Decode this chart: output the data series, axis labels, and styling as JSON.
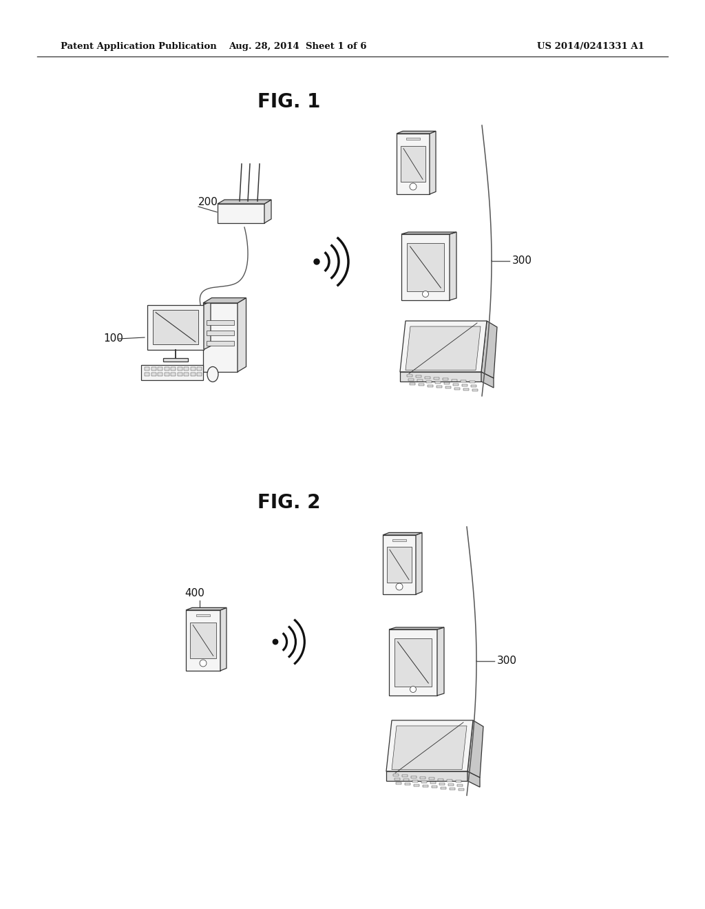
{
  "bg_color": "#ffffff",
  "header_left": "Patent Application Publication",
  "header_mid": "Aug. 28, 2014  Sheet 1 of 6",
  "header_right": "US 2014/0241331 A1",
  "fig1_title": "FIG. 1",
  "fig2_title": "FIG. 2",
  "line_color": "#333333",
  "text_color": "#111111",
  "fill_light": "#f5f5f5",
  "fill_mid": "#e0e0e0",
  "fill_dark": "#c8c8c8"
}
